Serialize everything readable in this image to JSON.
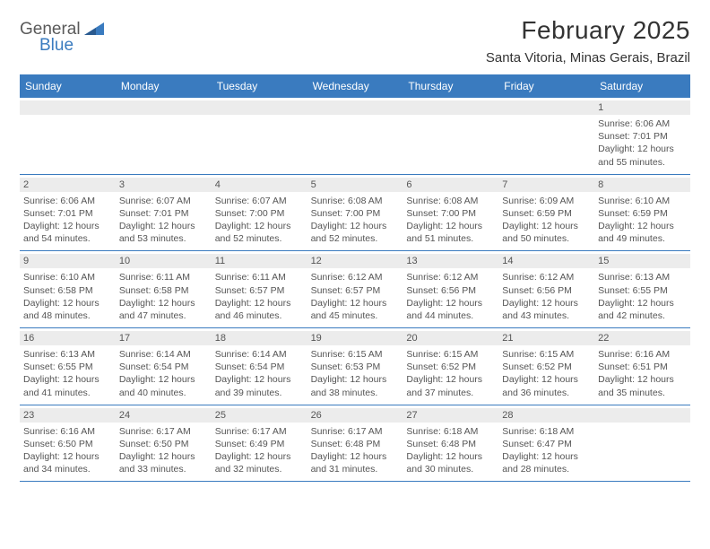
{
  "logo": {
    "text1": "General",
    "text2": "Blue"
  },
  "header": {
    "title": "February 2025",
    "subtitle": "Santa Vitoria, Minas Gerais, Brazil"
  },
  "colors": {
    "accent": "#3a7bbf",
    "barFill": "#ececec",
    "text": "#555555",
    "background": "#ffffff"
  },
  "dayNames": [
    "Sunday",
    "Monday",
    "Tuesday",
    "Wednesday",
    "Thursday",
    "Friday",
    "Saturday"
  ],
  "weeks": [
    [
      null,
      null,
      null,
      null,
      null,
      null,
      {
        "n": "1",
        "sr": "6:06 AM",
        "ss": "7:01 PM",
        "dh": "12",
        "dm": "55"
      }
    ],
    [
      {
        "n": "2",
        "sr": "6:06 AM",
        "ss": "7:01 PM",
        "dh": "12",
        "dm": "54"
      },
      {
        "n": "3",
        "sr": "6:07 AM",
        "ss": "7:01 PM",
        "dh": "12",
        "dm": "53"
      },
      {
        "n": "4",
        "sr": "6:07 AM",
        "ss": "7:00 PM",
        "dh": "12",
        "dm": "52"
      },
      {
        "n": "5",
        "sr": "6:08 AM",
        "ss": "7:00 PM",
        "dh": "12",
        "dm": "52"
      },
      {
        "n": "6",
        "sr": "6:08 AM",
        "ss": "7:00 PM",
        "dh": "12",
        "dm": "51"
      },
      {
        "n": "7",
        "sr": "6:09 AM",
        "ss": "6:59 PM",
        "dh": "12",
        "dm": "50"
      },
      {
        "n": "8",
        "sr": "6:10 AM",
        "ss": "6:59 PM",
        "dh": "12",
        "dm": "49"
      }
    ],
    [
      {
        "n": "9",
        "sr": "6:10 AM",
        "ss": "6:58 PM",
        "dh": "12",
        "dm": "48"
      },
      {
        "n": "10",
        "sr": "6:11 AM",
        "ss": "6:58 PM",
        "dh": "12",
        "dm": "47"
      },
      {
        "n": "11",
        "sr": "6:11 AM",
        "ss": "6:57 PM",
        "dh": "12",
        "dm": "46"
      },
      {
        "n": "12",
        "sr": "6:12 AM",
        "ss": "6:57 PM",
        "dh": "12",
        "dm": "45"
      },
      {
        "n": "13",
        "sr": "6:12 AM",
        "ss": "6:56 PM",
        "dh": "12",
        "dm": "44"
      },
      {
        "n": "14",
        "sr": "6:12 AM",
        "ss": "6:56 PM",
        "dh": "12",
        "dm": "43"
      },
      {
        "n": "15",
        "sr": "6:13 AM",
        "ss": "6:55 PM",
        "dh": "12",
        "dm": "42"
      }
    ],
    [
      {
        "n": "16",
        "sr": "6:13 AM",
        "ss": "6:55 PM",
        "dh": "12",
        "dm": "41"
      },
      {
        "n": "17",
        "sr": "6:14 AM",
        "ss": "6:54 PM",
        "dh": "12",
        "dm": "40"
      },
      {
        "n": "18",
        "sr": "6:14 AM",
        "ss": "6:54 PM",
        "dh": "12",
        "dm": "39"
      },
      {
        "n": "19",
        "sr": "6:15 AM",
        "ss": "6:53 PM",
        "dh": "12",
        "dm": "38"
      },
      {
        "n": "20",
        "sr": "6:15 AM",
        "ss": "6:52 PM",
        "dh": "12",
        "dm": "37"
      },
      {
        "n": "21",
        "sr": "6:15 AM",
        "ss": "6:52 PM",
        "dh": "12",
        "dm": "36"
      },
      {
        "n": "22",
        "sr": "6:16 AM",
        "ss": "6:51 PM",
        "dh": "12",
        "dm": "35"
      }
    ],
    [
      {
        "n": "23",
        "sr": "6:16 AM",
        "ss": "6:50 PM",
        "dh": "12",
        "dm": "34"
      },
      {
        "n": "24",
        "sr": "6:17 AM",
        "ss": "6:50 PM",
        "dh": "12",
        "dm": "33"
      },
      {
        "n": "25",
        "sr": "6:17 AM",
        "ss": "6:49 PM",
        "dh": "12",
        "dm": "32"
      },
      {
        "n": "26",
        "sr": "6:17 AM",
        "ss": "6:48 PM",
        "dh": "12",
        "dm": "31"
      },
      {
        "n": "27",
        "sr": "6:18 AM",
        "ss": "6:48 PM",
        "dh": "12",
        "dm": "30"
      },
      {
        "n": "28",
        "sr": "6:18 AM",
        "ss": "6:47 PM",
        "dh": "12",
        "dm": "28"
      },
      null
    ]
  ],
  "labels": {
    "sunrise": "Sunrise:",
    "sunset": "Sunset:",
    "daylightPrefix": "Daylight:",
    "hoursWord": "hours",
    "andWord": "and",
    "minutesWord": "minutes."
  }
}
